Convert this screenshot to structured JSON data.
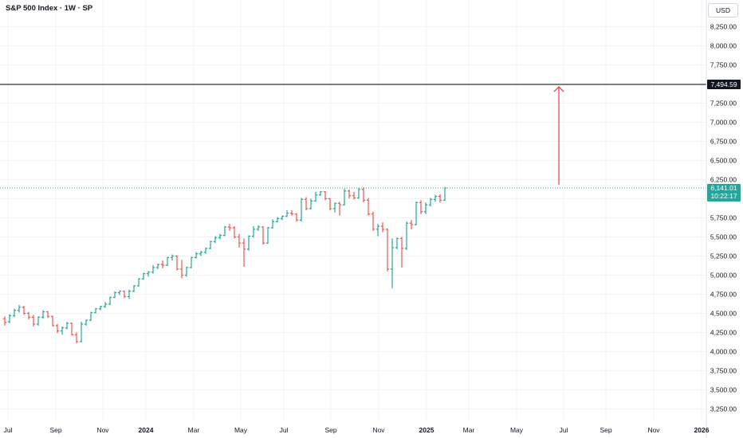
{
  "header": {
    "title": "S&P 500 Index · 1W · SP"
  },
  "price_scale": {
    "currency": "USD"
  },
  "colors": {
    "up": "#26a69a",
    "down": "#ef5350",
    "arrow": "#f23645",
    "target_line": "#000000",
    "current_line": "#26a69a",
    "grid": "#f0f3fa"
  },
  "chart_data": {
    "type": "ohlc",
    "title": "S&P 500 Index · 1W · SP",
    "interval": "1W",
    "ylim": [
      3100,
      8400
    ],
    "y_ticks": [
      "3,250.00",
      "3,500.00",
      "3,750.00",
      "4,000.00",
      "4,250.00",
      "4,500.00",
      "4,750.00",
      "5,000.00",
      "5,250.00",
      "5,500.00",
      "5,750.00",
      "6,000.00",
      "6,250.00",
      "6,500.00",
      "6,750.00",
      "7,000.00",
      "7,250.00",
      "7,500.00",
      "7,750.00",
      "8,000.00",
      "8,250.00"
    ],
    "x_ticks": [
      "Jul",
      "Sep",
      "Nov",
      "2024",
      "Mar",
      "May",
      "Jul",
      "Sep",
      "Nov",
      "2025",
      "Mar",
      "May",
      "Jul",
      "Sep",
      "Nov",
      "2026"
    ],
    "grid": true,
    "target_level": {
      "value": 7494.59,
      "label": "7,494.59"
    },
    "current_price": {
      "value": 6141.01,
      "label": "6,141.01",
      "countdown": "10:22:17"
    },
    "arrow": {
      "from": 6180,
      "to": 7494.59
    },
    "series": [
      {
        "o": 4430,
        "h": 4460,
        "l": 4340,
        "c": 4380
      },
      {
        "o": 4390,
        "h": 4490,
        "l": 4370,
        "c": 4470
      },
      {
        "o": 4470,
        "h": 4560,
        "l": 4450,
        "c": 4540
      },
      {
        "o": 4540,
        "h": 4610,
        "l": 4510,
        "c": 4580
      },
      {
        "o": 4580,
        "h": 4600,
        "l": 4480,
        "c": 4500
      },
      {
        "o": 4500,
        "h": 4520,
        "l": 4420,
        "c": 4450
      },
      {
        "o": 4450,
        "h": 4480,
        "l": 4330,
        "c": 4360
      },
      {
        "o": 4360,
        "h": 4460,
        "l": 4340,
        "c": 4450
      },
      {
        "o": 4450,
        "h": 4540,
        "l": 4430,
        "c": 4520
      },
      {
        "o": 4520,
        "h": 4530,
        "l": 4440,
        "c": 4460
      },
      {
        "o": 4460,
        "h": 4470,
        "l": 4330,
        "c": 4340
      },
      {
        "o": 4340,
        "h": 4360,
        "l": 4240,
        "c": 4270
      },
      {
        "o": 4270,
        "h": 4330,
        "l": 4220,
        "c": 4310
      },
      {
        "o": 4310,
        "h": 4390,
        "l": 4290,
        "c": 4370
      },
      {
        "o": 4370,
        "h": 4380,
        "l": 4210,
        "c": 4220
      },
      {
        "o": 4220,
        "h": 4250,
        "l": 4110,
        "c": 4130
      },
      {
        "o": 4130,
        "h": 4390,
        "l": 4120,
        "c": 4360
      },
      {
        "o": 4360,
        "h": 4420,
        "l": 4340,
        "c": 4410
      },
      {
        "o": 4410,
        "h": 4520,
        "l": 4400,
        "c": 4510
      },
      {
        "o": 4510,
        "h": 4570,
        "l": 4500,
        "c": 4560
      },
      {
        "o": 4560,
        "h": 4600,
        "l": 4540,
        "c": 4590
      },
      {
        "o": 4590,
        "h": 4650,
        "l": 4570,
        "c": 4620
      },
      {
        "o": 4620,
        "h": 4720,
        "l": 4610,
        "c": 4710
      },
      {
        "o": 4710,
        "h": 4790,
        "l": 4700,
        "c": 4770
      },
      {
        "o": 4770,
        "h": 4800,
        "l": 4740,
        "c": 4790
      },
      {
        "o": 4790,
        "h": 4800,
        "l": 4700,
        "c": 4720
      },
      {
        "o": 4720,
        "h": 4810,
        "l": 4690,
        "c": 4790
      },
      {
        "o": 4790,
        "h": 4870,
        "l": 4780,
        "c": 4860
      },
      {
        "o": 4860,
        "h": 4960,
        "l": 4850,
        "c": 4950
      },
      {
        "o": 4950,
        "h": 5030,
        "l": 4940,
        "c": 5020
      },
      {
        "o": 5020,
        "h": 5050,
        "l": 4980,
        "c": 5040
      },
      {
        "o": 5040,
        "h": 5130,
        "l": 5020,
        "c": 5100
      },
      {
        "o": 5100,
        "h": 5150,
        "l": 5080,
        "c": 5140
      },
      {
        "o": 5140,
        "h": 5190,
        "l": 5090,
        "c": 5130
      },
      {
        "o": 5130,
        "h": 5240,
        "l": 5120,
        "c": 5230
      },
      {
        "o": 5230,
        "h": 5270,
        "l": 5190,
        "c": 5250
      },
      {
        "o": 5250,
        "h": 5260,
        "l": 5060,
        "c": 5080
      },
      {
        "o": 5080,
        "h": 5200,
        "l": 4960,
        "c": 5000
      },
      {
        "o": 5000,
        "h": 5110,
        "l": 4980,
        "c": 5100
      },
      {
        "o": 5100,
        "h": 5240,
        "l": 5090,
        "c": 5230
      },
      {
        "o": 5230,
        "h": 5300,
        "l": 5220,
        "c": 5280
      },
      {
        "o": 5280,
        "h": 5320,
        "l": 5250,
        "c": 5300
      },
      {
        "o": 5300,
        "h": 5360,
        "l": 5280,
        "c": 5350
      },
      {
        "o": 5350,
        "h": 5450,
        "l": 5340,
        "c": 5440
      },
      {
        "o": 5440,
        "h": 5510,
        "l": 5420,
        "c": 5490
      },
      {
        "o": 5490,
        "h": 5540,
        "l": 5470,
        "c": 5520
      },
      {
        "o": 5520,
        "h": 5640,
        "l": 5510,
        "c": 5630
      },
      {
        "o": 5630,
        "h": 5670,
        "l": 5580,
        "c": 5620
      },
      {
        "o": 5620,
        "h": 5640,
        "l": 5480,
        "c": 5500
      },
      {
        "o": 5500,
        "h": 5540,
        "l": 5360,
        "c": 5420
      },
      {
        "o": 5420,
        "h": 5480,
        "l": 5110,
        "c": 5340
      },
      {
        "o": 5340,
        "h": 5520,
        "l": 5320,
        "c": 5510
      },
      {
        "o": 5510,
        "h": 5640,
        "l": 5490,
        "c": 5600
      },
      {
        "o": 5600,
        "h": 5650,
        "l": 5580,
        "c": 5630
      },
      {
        "o": 5630,
        "h": 5640,
        "l": 5400,
        "c": 5420
      },
      {
        "o": 5420,
        "h": 5630,
        "l": 5410,
        "c": 5620
      },
      {
        "o": 5620,
        "h": 5730,
        "l": 5610,
        "c": 5700
      },
      {
        "o": 5700,
        "h": 5760,
        "l": 5690,
        "c": 5740
      },
      {
        "o": 5740,
        "h": 5780,
        "l": 5720,
        "c": 5770
      },
      {
        "o": 5770,
        "h": 5850,
        "l": 5760,
        "c": 5810
      },
      {
        "o": 5810,
        "h": 5850,
        "l": 5780,
        "c": 5800
      },
      {
        "o": 5800,
        "h": 5810,
        "l": 5700,
        "c": 5720
      },
      {
        "o": 5720,
        "h": 6010,
        "l": 5700,
        "c": 5990
      },
      {
        "o": 5990,
        "h": 6020,
        "l": 5850,
        "c": 5870
      },
      {
        "o": 5870,
        "h": 6000,
        "l": 5860,
        "c": 5970
      },
      {
        "o": 5970,
        "h": 6090,
        "l": 5960,
        "c": 6050
      },
      {
        "o": 6050,
        "h": 6100,
        "l": 6040,
        "c": 6090
      },
      {
        "o": 6090,
        "h": 6100,
        "l": 5980,
        "c": 6000
      },
      {
        "o": 6000,
        "h": 6010,
        "l": 5850,
        "c": 5870
      },
      {
        "o": 5870,
        "h": 5950,
        "l": 5820,
        "c": 5940
      },
      {
        "o": 5940,
        "h": 5960,
        "l": 5780,
        "c": 5920
      },
      {
        "o": 5920,
        "h": 6130,
        "l": 5910,
        "c": 6100
      },
      {
        "o": 6100,
        "h": 6120,
        "l": 6000,
        "c": 6040
      },
      {
        "o": 6040,
        "h": 6090,
        "l": 5990,
        "c": 6010
      },
      {
        "o": 6010,
        "h": 6140,
        "l": 6000,
        "c": 6120
      },
      {
        "o": 6120,
        "h": 6150,
        "l": 5950,
        "c": 5980
      },
      {
        "o": 5980,
        "h": 6010,
        "l": 5780,
        "c": 5800
      },
      {
        "o": 5800,
        "h": 5830,
        "l": 5580,
        "c": 5600
      },
      {
        "o": 5600,
        "h": 5670,
        "l": 5510,
        "c": 5640
      },
      {
        "o": 5640,
        "h": 5690,
        "l": 5560,
        "c": 5600
      },
      {
        "o": 5600,
        "h": 5610,
        "l": 5050,
        "c": 5080
      },
      {
        "o": 5080,
        "h": 5480,
        "l": 4830,
        "c": 5360
      },
      {
        "o": 5360,
        "h": 5490,
        "l": 5340,
        "c": 5480
      },
      {
        "o": 5480,
        "h": 5500,
        "l": 5100,
        "c": 5350
      },
      {
        "o": 5350,
        "h": 5700,
        "l": 5330,
        "c": 5680
      },
      {
        "o": 5680,
        "h": 5720,
        "l": 5600,
        "c": 5660
      },
      {
        "o": 5660,
        "h": 5960,
        "l": 5650,
        "c": 5950
      },
      {
        "o": 5950,
        "h": 5980,
        "l": 5800,
        "c": 5830
      },
      {
        "o": 5830,
        "h": 5950,
        "l": 5800,
        "c": 5920
      },
      {
        "o": 5920,
        "h": 6010,
        "l": 5900,
        "c": 5990
      },
      {
        "o": 5990,
        "h": 6050,
        "l": 5960,
        "c": 6030
      },
      {
        "o": 6030,
        "h": 6060,
        "l": 5950,
        "c": 5980
      },
      {
        "o": 5980,
        "h": 6150,
        "l": 5970,
        "c": 6140
      }
    ]
  }
}
